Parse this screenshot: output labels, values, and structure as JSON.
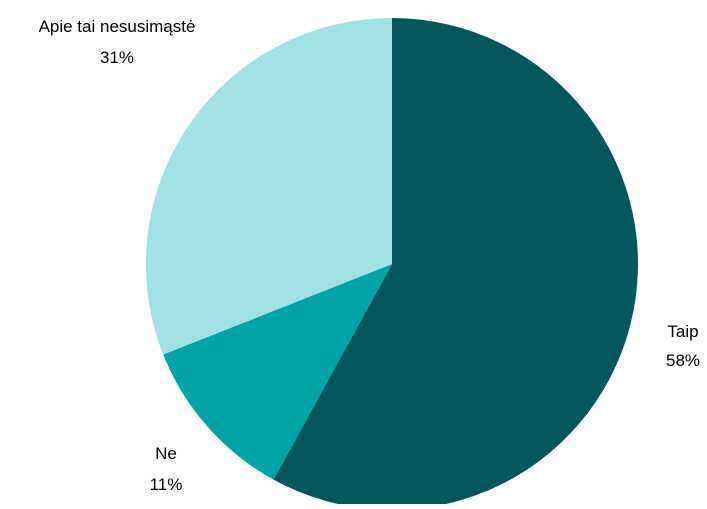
{
  "chart_data": {
    "type": "pie",
    "start_angle_deg": 0,
    "direction": "clockwise",
    "slices": [
      {
        "category": "Taip",
        "value": 58,
        "value_label": "58%",
        "color": "#02565C"
      },
      {
        "category": "Ne",
        "value": 11,
        "value_label": "11%",
        "color": "#00A3A6"
      },
      {
        "category": "Apie tai nesusimąstė",
        "value": 31,
        "value_label": "31%",
        "color": "#A1E0E3"
      }
    ],
    "legend": "none",
    "data_labels": "outside"
  }
}
